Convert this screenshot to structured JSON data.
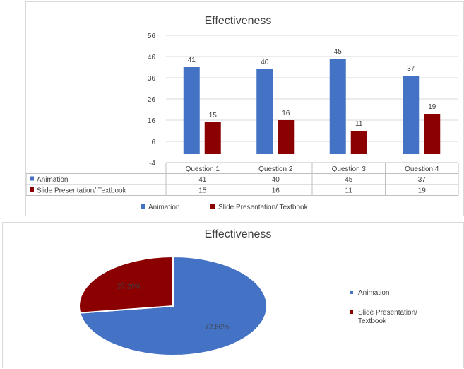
{
  "colors": {
    "animation": "#4472C4",
    "slide": "#8B0000",
    "grid": "#d9d9d9",
    "text": "#404040"
  },
  "chart_data": [
    {
      "type": "bar",
      "title": "Effectiveness",
      "categories": [
        "Question 1",
        "Question 2",
        "Question 3",
        "Question 4"
      ],
      "series": [
        {
          "name": "Animation",
          "values": [
            41,
            40,
            45,
            37
          ]
        },
        {
          "name": "Slide Presentation/ Textbook",
          "values": [
            15,
            16,
            11,
            19
          ]
        }
      ],
      "yticks": [
        "56",
        "46",
        "36",
        "26",
        "16",
        "6",
        "-4"
      ],
      "ylim": [
        -4,
        56
      ],
      "grid": true,
      "legend": "bottom",
      "data_table": true
    },
    {
      "type": "pie",
      "title": "Effectiveness",
      "labels": [
        "Animation",
        "Slide Presentation/ Textbook"
      ],
      "values": [
        72.8,
        27.2
      ],
      "data_labels": [
        "72.80%",
        "27.20%"
      ],
      "legend": "right"
    }
  ]
}
